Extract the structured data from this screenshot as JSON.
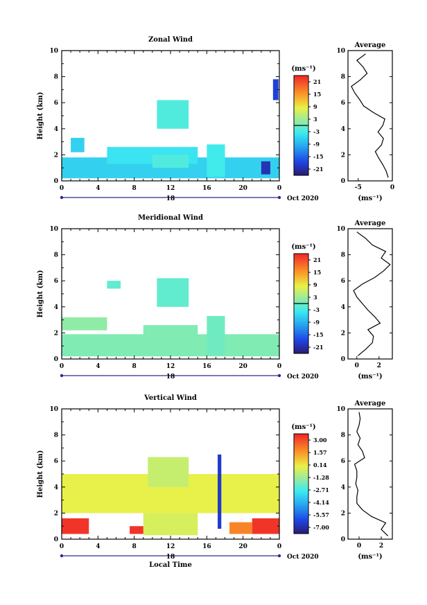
{
  "chart_data": [
    {
      "type": "heatmap",
      "title": "Zonal Wind",
      "xlabel": "",
      "ylabel": "Height (km)",
      "xlim": [
        0,
        24
      ],
      "ylim": [
        0,
        10
      ],
      "x_ticks": [
        "0",
        "4",
        "8",
        "12",
        "16",
        "20",
        "0"
      ],
      "y_ticks": [
        "0",
        "2",
        "4",
        "6",
        "8",
        "10"
      ],
      "date_label": "18",
      "date_right": "Oct 2020",
      "colorbar_unit": "(ms⁻¹)",
      "colorbar_ticks": [
        "21",
        "15",
        "9",
        "3",
        "-3",
        "-9",
        "-15",
        "-21"
      ],
      "colorbar_range": [
        -24,
        24
      ],
      "regions": [
        {
          "x": [
            0,
            24
          ],
          "y": [
            0.2,
            1.8
          ],
          "value": -6
        },
        {
          "x": [
            1,
            2.5
          ],
          "y": [
            2.2,
            3.3
          ],
          "value": -6
        },
        {
          "x": [
            5,
            15
          ],
          "y": [
            1.3,
            2.6
          ],
          "value": -4
        },
        {
          "x": [
            10,
            14
          ],
          "y": [
            1.0,
            2.0
          ],
          "value": -2
        },
        {
          "x": [
            10.5,
            14
          ],
          "y": [
            4.0,
            6.2
          ],
          "value": -2
        },
        {
          "x": [
            16,
            18
          ],
          "y": [
            0.3,
            2.8
          ],
          "value": -3
        },
        {
          "x": [
            22,
            23
          ],
          "y": [
            0.5,
            1.5
          ],
          "value": -20
        },
        {
          "x": [
            23.3,
            23.9
          ],
          "y": [
            6.2,
            7.8
          ],
          "value": -18
        }
      ],
      "average": {
        "title": "Average",
        "xlabel": "(ms⁻¹)",
        "xlim": [
          -6.5,
          0
        ],
        "x_ticks": [
          "-5",
          "0"
        ],
        "heights": [
          0,
          0.5,
          1,
          1.5,
          2,
          2.5,
          3,
          3.5,
          4,
          4.5,
          5,
          5.5,
          6,
          6.5,
          7,
          7.5,
          8,
          8.5,
          9,
          9.5
        ],
        "values": [
          -0.6,
          -0.9,
          -1.4,
          -2.0,
          -2.5,
          -1.6,
          -1.3,
          -2.1,
          -1.4,
          -1.1,
          -2.8,
          -4.2,
          -4.8,
          -5.5,
          -6.0,
          -4.7,
          -3.7,
          -4.3,
          -5.2,
          -3.9
        ]
      }
    },
    {
      "type": "heatmap",
      "title": "Meridional Wind",
      "xlabel": "",
      "ylabel": "Height (km)",
      "xlim": [
        0,
        24
      ],
      "ylim": [
        0,
        10
      ],
      "x_ticks": [
        "0",
        "4",
        "8",
        "12",
        "16",
        "20",
        "0"
      ],
      "y_ticks": [
        "0",
        "2",
        "4",
        "6",
        "8",
        "10"
      ],
      "date_label": "18",
      "date_right": "Oct 2020",
      "colorbar_unit": "(ms⁻¹)",
      "colorbar_ticks": [
        "21",
        "15",
        "9",
        "3",
        "-3",
        "-9",
        "-15",
        "-21"
      ],
      "colorbar_range": [
        -24,
        24
      ],
      "regions": [
        {
          "x": [
            0,
            24
          ],
          "y": [
            0.2,
            1.9
          ],
          "value": 1
        },
        {
          "x": [
            0,
            5
          ],
          "y": [
            2.2,
            3.2
          ],
          "value": 2
        },
        {
          "x": [
            9,
            15
          ],
          "y": [
            1.3,
            2.6
          ],
          "value": 1
        },
        {
          "x": [
            10.5,
            14
          ],
          "y": [
            4.0,
            6.2
          ],
          "value": -1
        },
        {
          "x": [
            16,
            18
          ],
          "y": [
            0.3,
            3.3
          ],
          "value": 0
        },
        {
          "x": [
            5,
            6.5
          ],
          "y": [
            5.4,
            6.0
          ],
          "value": -1
        }
      ],
      "average": {
        "title": "Average",
        "xlabel": "(ms⁻¹)",
        "xlim": [
          -0.8,
          3.2
        ],
        "x_ticks": [
          "0",
          "2"
        ],
        "heights": [
          0,
          0.5,
          1,
          1.5,
          2,
          2.5,
          3,
          3.5,
          4,
          4.5,
          5,
          5.5,
          6,
          6.5,
          7,
          7.5,
          8,
          8.5,
          9,
          9.5
        ],
        "values": [
          0.1,
          0.8,
          1.4,
          1.5,
          1.0,
          2.1,
          1.6,
          1.0,
          0.5,
          0.0,
          -0.3,
          0.5,
          1.6,
          2.4,
          3.0,
          2.2,
          2.6,
          1.4,
          0.8,
          0.0
        ]
      }
    },
    {
      "type": "heatmap",
      "title": "Vertical Wind",
      "xlabel": "Local Time",
      "ylabel": "Height (km)",
      "xlim": [
        0,
        24
      ],
      "ylim": [
        0,
        10
      ],
      "x_ticks": [
        "0",
        "4",
        "8",
        "12",
        "16",
        "20",
        "0"
      ],
      "y_ticks": [
        "0",
        "2",
        "4",
        "6",
        "8",
        "10"
      ],
      "date_label": "18",
      "date_right": "Oct 2020",
      "colorbar_unit": "(ms⁻¹)",
      "colorbar_ticks": [
        "3.00",
        "1.57",
        "0.14",
        "-1.28",
        "-2.71",
        "-4.14",
        "-5.57",
        "-7.00"
      ],
      "colorbar_range": [
        -7.72,
        3.72
      ],
      "regions": [
        {
          "x": [
            0,
            24
          ],
          "y": [
            2.0,
            5.0
          ],
          "value": 0.0
        },
        {
          "x": [
            9,
            15
          ],
          "y": [
            0.3,
            2.0
          ],
          "value": -0.3
        },
        {
          "x": [
            9.5,
            14
          ],
          "y": [
            4.0,
            6.3
          ],
          "value": -0.6
        },
        {
          "x": [
            0,
            3
          ],
          "y": [
            0.4,
            1.6
          ],
          "value": 3.5
        },
        {
          "x": [
            7.5,
            9
          ],
          "y": [
            0.4,
            1.0
          ],
          "value": 3.5
        },
        {
          "x": [
            18.5,
            21
          ],
          "y": [
            0.4,
            1.3
          ],
          "value": 2.0
        },
        {
          "x": [
            21,
            24
          ],
          "y": [
            0.4,
            1.6
          ],
          "value": 3.5
        },
        {
          "x": [
            17.2,
            17.6
          ],
          "y": [
            0.8,
            6.5
          ],
          "value": -6.5
        }
      ],
      "average": {
        "title": "Average",
        "xlabel": "(ms⁻¹)",
        "xlim": [
          -1.0,
          3.0
        ],
        "x_ticks": [
          "0",
          "2"
        ],
        "heights": [
          0,
          0.5,
          1,
          1.5,
          2,
          2.5,
          3,
          3.5,
          4,
          4.5,
          5,
          5.5,
          6,
          6.5,
          7,
          7.5,
          8,
          8.5,
          9,
          9.5
        ],
        "values": [
          2.6,
          2.0,
          2.4,
          1.1,
          0.3,
          -0.2,
          -0.2,
          -0.1,
          -0.3,
          -0.2,
          -0.2,
          -0.4,
          0.5,
          0.3,
          -0.1,
          0.1,
          -0.2,
          0.0,
          0.1,
          0.0
        ]
      }
    }
  ]
}
